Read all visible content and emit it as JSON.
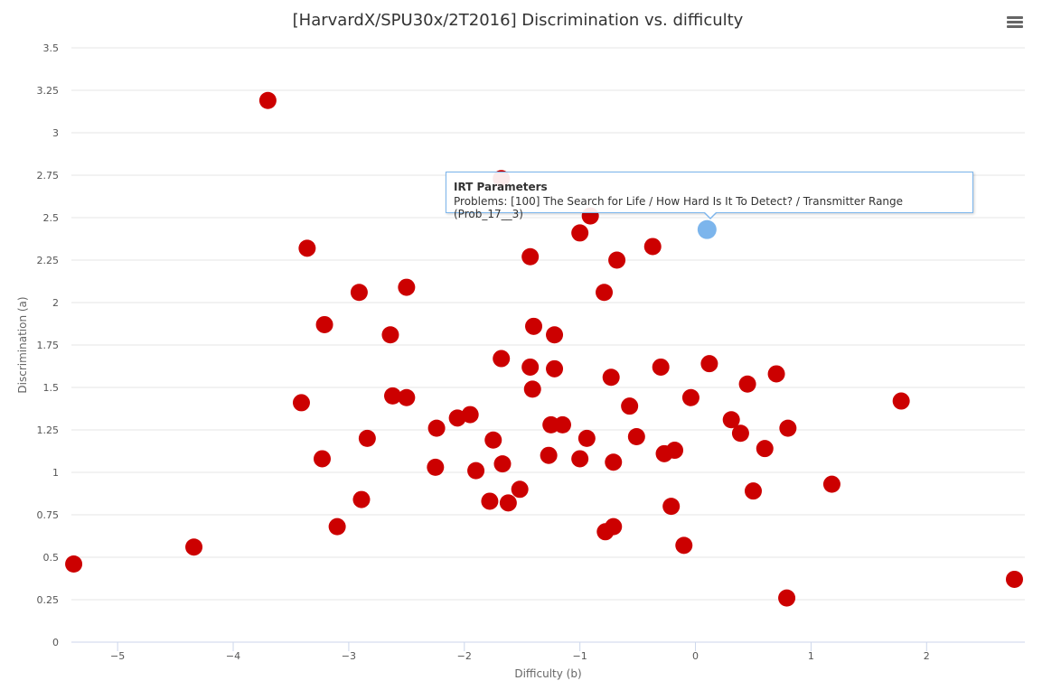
{
  "header": {
    "title": "[HarvardX/SPU30x/2T2016] Discrimination vs. difficulty",
    "menu_icon": "hamburger-icon"
  },
  "tooltip": {
    "title": "IRT Parameters",
    "text": "Problems: [100] The Search for Life / How Hard Is It To Detect? / Transmitter Range (Prob_17__3)"
  },
  "chart_data": {
    "type": "scatter",
    "title": "[HarvardX/SPU30x/2T2016] Discrimination vs. difficulty",
    "xlabel": "Difficulty (b)",
    "ylabel": "Discrimination (a)",
    "xlim": [
      -5.4,
      2.85
    ],
    "ylim": [
      0,
      3.5
    ],
    "x_ticks": [
      -5,
      -4,
      -3,
      -2,
      -1,
      0,
      1,
      2
    ],
    "x_tick_labels": [
      "−5",
      "−4",
      "−3",
      "−2",
      "−1",
      "0",
      "1",
      "2"
    ],
    "y_ticks": [
      0,
      0.25,
      0.5,
      0.75,
      1,
      1.25,
      1.5,
      1.75,
      2,
      2.25,
      2.5,
      2.75,
      3,
      3.25,
      3.5
    ],
    "y_tick_labels": [
      "0",
      "0.25",
      "0.5",
      "0.75",
      "1",
      "1.25",
      "1.5",
      "1.75",
      "2",
      "2.25",
      "2.5",
      "2.75",
      "3",
      "3.25",
      "3.5"
    ],
    "grid": true,
    "legend": false,
    "point_color": "#cc0000",
    "highlight_color": "#7cb5ec",
    "highlighted_point": {
      "x": 0.1,
      "y": 2.43
    },
    "points": [
      {
        "x": -5.38,
        "y": 0.46
      },
      {
        "x": -4.34,
        "y": 0.56
      },
      {
        "x": -3.7,
        "y": 3.19
      },
      {
        "x": -3.36,
        "y": 2.32
      },
      {
        "x": -3.41,
        "y": 1.41
      },
      {
        "x": -3.21,
        "y": 1.87
      },
      {
        "x": -3.23,
        "y": 1.08
      },
      {
        "x": -3.1,
        "y": 0.68
      },
      {
        "x": -2.91,
        "y": 2.06
      },
      {
        "x": -2.89,
        "y": 0.84
      },
      {
        "x": -2.84,
        "y": 1.2
      },
      {
        "x": -2.64,
        "y": 1.81
      },
      {
        "x": -2.62,
        "y": 1.45
      },
      {
        "x": -2.5,
        "y": 2.09
      },
      {
        "x": -2.5,
        "y": 1.44
      },
      {
        "x": -2.24,
        "y": 1.26
      },
      {
        "x": -2.25,
        "y": 1.03
      },
      {
        "x": -2.06,
        "y": 1.32
      },
      {
        "x": -1.95,
        "y": 1.34
      },
      {
        "x": -1.9,
        "y": 1.01
      },
      {
        "x": -1.78,
        "y": 0.83
      },
      {
        "x": -1.75,
        "y": 1.19
      },
      {
        "x": -1.68,
        "y": 2.73
      },
      {
        "x": -1.68,
        "y": 1.67
      },
      {
        "x": -1.67,
        "y": 1.05
      },
      {
        "x": -1.62,
        "y": 0.82
      },
      {
        "x": -1.52,
        "y": 0.9
      },
      {
        "x": -1.43,
        "y": 2.27
      },
      {
        "x": -1.43,
        "y": 1.62
      },
      {
        "x": -1.4,
        "y": 1.86
      },
      {
        "x": -1.41,
        "y": 1.49
      },
      {
        "x": -1.27,
        "y": 1.1
      },
      {
        "x": -1.25,
        "y": 1.28
      },
      {
        "x": -1.22,
        "y": 1.81
      },
      {
        "x": -1.22,
        "y": 1.61
      },
      {
        "x": -1.15,
        "y": 1.28
      },
      {
        "x": -1.0,
        "y": 2.41
      },
      {
        "x": -1.0,
        "y": 1.08
      },
      {
        "x": -0.91,
        "y": 2.51
      },
      {
        "x": -0.94,
        "y": 1.2
      },
      {
        "x": -0.79,
        "y": 2.06
      },
      {
        "x": -0.78,
        "y": 0.65
      },
      {
        "x": -0.73,
        "y": 1.56
      },
      {
        "x": -0.71,
        "y": 1.06
      },
      {
        "x": -0.71,
        "y": 0.68
      },
      {
        "x": -0.68,
        "y": 2.25
      },
      {
        "x": -0.57,
        "y": 1.39
      },
      {
        "x": -0.51,
        "y": 1.21
      },
      {
        "x": -0.37,
        "y": 2.33
      },
      {
        "x": -0.3,
        "y": 1.62
      },
      {
        "x": -0.27,
        "y": 1.11
      },
      {
        "x": -0.21,
        "y": 0.8
      },
      {
        "x": -0.18,
        "y": 1.13
      },
      {
        "x": -0.1,
        "y": 0.57
      },
      {
        "x": -0.04,
        "y": 1.44
      },
      {
        "x": 0.12,
        "y": 1.64
      },
      {
        "x": 0.31,
        "y": 1.31
      },
      {
        "x": 0.39,
        "y": 1.23
      },
      {
        "x": 0.45,
        "y": 1.52
      },
      {
        "x": 0.5,
        "y": 0.89
      },
      {
        "x": 0.6,
        "y": 1.14
      },
      {
        "x": 0.7,
        "y": 1.58
      },
      {
        "x": 0.79,
        "y": 0.26
      },
      {
        "x": 0.8,
        "y": 1.26
      },
      {
        "x": 1.18,
        "y": 0.93
      },
      {
        "x": 1.78,
        "y": 1.42
      },
      {
        "x": 2.76,
        "y": 0.37
      }
    ]
  }
}
